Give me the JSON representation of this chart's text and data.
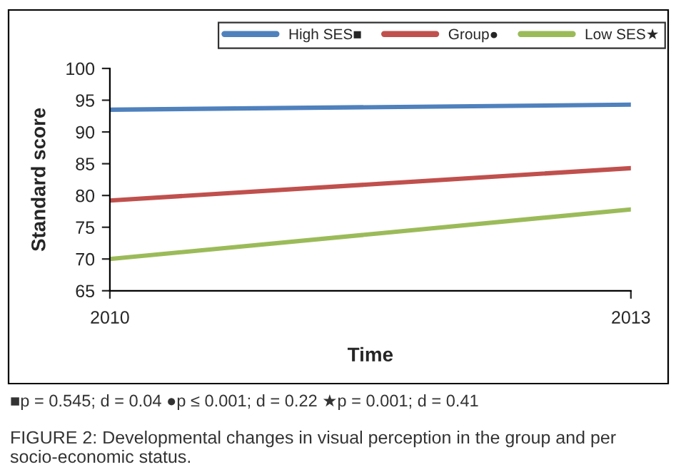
{
  "chart_data": {
    "type": "line",
    "xlabel": "Time",
    "ylabel": "Standard score",
    "categories": [
      "2010",
      "2013"
    ],
    "series": [
      {
        "name": "High SES■",
        "color": "#4f81bd",
        "values": [
          93.5,
          94.3
        ]
      },
      {
        "name": "Group●",
        "color": "#c0504d",
        "values": [
          79.2,
          84.3
        ]
      },
      {
        "name": "Low SES★",
        "color": "#9bbb59",
        "values": [
          70.0,
          77.8
        ]
      }
    ],
    "ylim": [
      65,
      100
    ],
    "yticks": [
      65,
      70,
      75,
      80,
      85,
      90,
      95,
      100
    ],
    "grid": false,
    "legend": "top right",
    "marker": "none",
    "line_style": "solid",
    "annotations": [
      "■p = 0.545; d = 0.04 ●p ≤ 0.001; d = 0.22 ★p = 0.001; d = 0.41",
      "FIGURE 2: Developmental changes in visual perception in the group and per socio-economic status."
    ]
  }
}
